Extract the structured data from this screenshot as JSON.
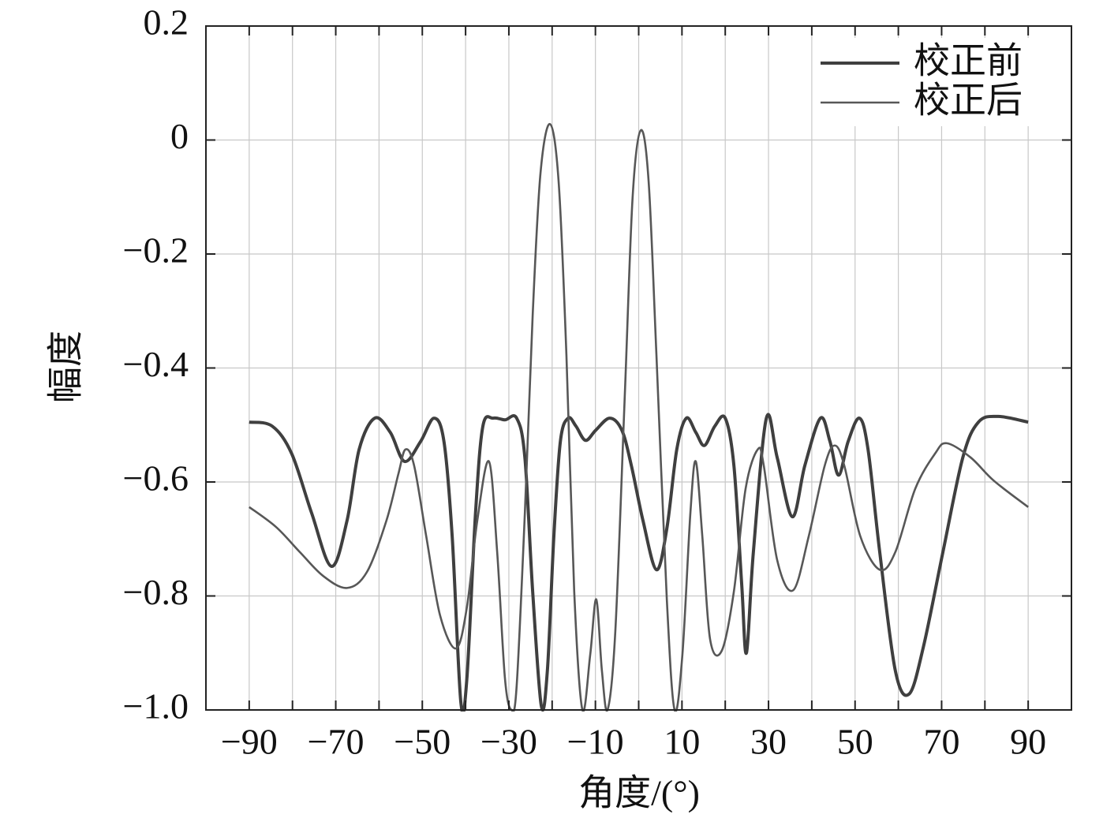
{
  "chart_data": {
    "type": "line",
    "xlabel": "角度/(°)",
    "ylabel": "幅度",
    "xlim": [
      -100,
      100
    ],
    "ylim": [
      -1.0,
      0.2
    ],
    "xticks": [
      {
        "value": -90,
        "label": "−90"
      },
      {
        "value": -70,
        "label": "−70"
      },
      {
        "value": -50,
        "label": "−50"
      },
      {
        "value": -30,
        "label": "−30"
      },
      {
        "value": -10,
        "label": "−10"
      },
      10,
      30,
      50,
      70,
      90
    ],
    "xminor": [
      -80,
      -60,
      -40,
      -20,
      0,
      20,
      40,
      60,
      80
    ],
    "yticks": [
      {
        "value": -1.0,
        "label": "−1.0"
      },
      {
        "value": -0.8,
        "label": "−0.8"
      },
      {
        "value": -0.6,
        "label": "−0.6"
      },
      {
        "value": -0.4,
        "label": "−0.4"
      },
      {
        "value": -0.2,
        "label": "−0.2"
      },
      0,
      0.2
    ],
    "grid": true,
    "legend": "upper right",
    "series": [
      {
        "name": "校正前",
        "color": "#3f3f3f",
        "width": 4,
        "x": [
          -90,
          -84.7,
          -80.2,
          -75.6,
          -71.0,
          -67.4,
          -64.6,
          -61.0,
          -57.4,
          -54.1,
          -50.4,
          -47.3,
          -45.0,
          -43.1,
          -41.1,
          -39.7,
          -37.7,
          -36.0,
          -33.6,
          -30.9,
          -28.2,
          -26.3,
          -24.5,
          -22.5,
          -21.1,
          -19.6,
          -18.1,
          -16.3,
          -14.5,
          -12.3,
          -9.9,
          -6.7,
          -3.9,
          -1.7,
          1.0,
          4.1,
          6.5,
          8.8,
          11.0,
          13.2,
          15.2,
          17.6,
          20.0,
          22.0,
          23.8,
          24.9,
          26.5,
          29.5,
          32.0,
          35.5,
          38.4,
          42.0,
          44.2,
          46.2,
          48.4,
          51.0,
          53.0,
          55.7,
          59.3,
          62.5,
          65.8,
          70.3,
          74.9,
          78.5,
          83.1,
          90
        ],
        "values": [
          -0.495,
          -0.502,
          -0.55,
          -0.654,
          -0.748,
          -0.668,
          -0.543,
          -0.488,
          -0.513,
          -0.564,
          -0.529,
          -0.488,
          -0.529,
          -0.695,
          -0.986,
          -0.945,
          -0.654,
          -0.502,
          -0.488,
          -0.491,
          -0.488,
          -0.557,
          -0.792,
          -0.993,
          -0.931,
          -0.695,
          -0.529,
          -0.488,
          -0.502,
          -0.527,
          -0.509,
          -0.488,
          -0.509,
          -0.571,
          -0.668,
          -0.754,
          -0.682,
          -0.543,
          -0.488,
          -0.513,
          -0.536,
          -0.502,
          -0.488,
          -0.571,
          -0.779,
          -0.9,
          -0.723,
          -0.488,
          -0.557,
          -0.661,
          -0.571,
          -0.488,
          -0.529,
          -0.588,
          -0.529,
          -0.488,
          -0.543,
          -0.723,
          -0.931,
          -0.972,
          -0.889,
          -0.723,
          -0.557,
          -0.495,
          -0.485,
          -0.495
        ]
      },
      {
        "name": "校正后",
        "color": "#575757",
        "width": 2.6,
        "x": [
          -90,
          -83.8,
          -78.3,
          -72.9,
          -67.4,
          -62.8,
          -58.3,
          -55.5,
          -53.9,
          -51.9,
          -49.1,
          -45.9,
          -42.2,
          -39.7,
          -37.3,
          -34.6,
          -32.7,
          -30.9,
          -29.4,
          -28.2,
          -26.3,
          -24.5,
          -22.7,
          -20.5,
          -18.5,
          -16.7,
          -14.9,
          -13.0,
          -11.2,
          -9.8,
          -8.5,
          -7.2,
          -5.4,
          -3.2,
          -1.4,
          0.5,
          2.3,
          4.1,
          6.5,
          8.3,
          10.1,
          11.95,
          13.2,
          14.7,
          16.5,
          19.2,
          22.0,
          24.7,
          27.5,
          28.9,
          32.0,
          35.7,
          39.3,
          43.0,
          45.3,
          47.5,
          51.2,
          55.7,
          59.3,
          63.9,
          68.5,
          71.2,
          76.7,
          82.1,
          90
        ],
        "values": [
          -0.644,
          -0.679,
          -0.723,
          -0.765,
          -0.786,
          -0.758,
          -0.668,
          -0.585,
          -0.543,
          -0.571,
          -0.695,
          -0.834,
          -0.892,
          -0.82,
          -0.668,
          -0.564,
          -0.723,
          -0.945,
          -1.0,
          -0.958,
          -0.654,
          -0.308,
          -0.059,
          0.028,
          -0.073,
          -0.377,
          -0.792,
          -1.0,
          -0.903,
          -0.806,
          -0.931,
          -1.0,
          -0.862,
          -0.446,
          -0.1,
          0.017,
          -0.073,
          -0.377,
          -0.806,
          -1.0,
          -0.903,
          -0.654,
          -0.564,
          -0.695,
          -0.876,
          -0.896,
          -0.792,
          -0.612,
          -0.543,
          -0.571,
          -0.737,
          -0.79,
          -0.695,
          -0.571,
          -0.536,
          -0.571,
          -0.695,
          -0.754,
          -0.723,
          -0.612,
          -0.55,
          -0.532,
          -0.557,
          -0.598,
          -0.644
        ]
      }
    ]
  }
}
